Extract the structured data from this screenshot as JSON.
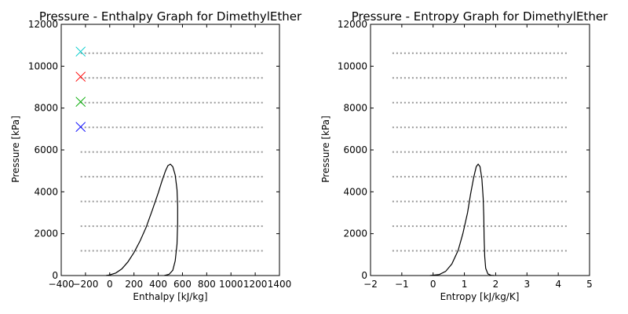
{
  "chart_data": [
    {
      "type": "line",
      "title": "Pressure - Enthalpy Graph for DimethylEther",
      "xlabel": "Enthalpy [kJ/kg]",
      "ylabel": "Pressure [kPa]",
      "xlim": [
        -400,
        1400
      ],
      "ylim": [
        0,
        12000
      ],
      "xticks": [
        -400,
        -200,
        0,
        200,
        400,
        600,
        800,
        1000,
        1200,
        1400
      ],
      "yticks": [
        0,
        2000,
        4000,
        6000,
        8000,
        10000,
        12000
      ],
      "dome": [
        [
          -30,
          0
        ],
        [
          0,
          30
        ],
        [
          50,
          120
        ],
        [
          100,
          320
        ],
        [
          150,
          650
        ],
        [
          200,
          1100
        ],
        [
          250,
          1650
        ],
        [
          300,
          2300
        ],
        [
          350,
          3100
        ],
        [
          400,
          3950
        ],
        [
          430,
          4500
        ],
        [
          460,
          5000
        ],
        [
          480,
          5250
        ],
        [
          500,
          5320
        ],
        [
          520,
          5200
        ],
        [
          540,
          4800
        ],
        [
          555,
          4100
        ],
        [
          560,
          3300
        ],
        [
          560,
          2500
        ],
        [
          555,
          1500
        ],
        [
          540,
          700
        ],
        [
          520,
          250
        ],
        [
          490,
          60
        ],
        [
          450,
          0
        ]
      ],
      "isobars": {
        "x_range": [
          -240,
          1270
        ],
        "pressures": [
          1180,
          2360,
          3540,
          4720,
          5900,
          7080,
          8260,
          9440,
          10620
        ]
      },
      "markers": [
        {
          "x": -240,
          "y": 10700,
          "color": "#00cccc"
        },
        {
          "x": -240,
          "y": 9500,
          "color": "#ff0000"
        },
        {
          "x": -240,
          "y": 8300,
          "color": "#00aa00"
        },
        {
          "x": -240,
          "y": 7100,
          "color": "#0000ff"
        }
      ]
    },
    {
      "type": "line",
      "title": "Pressure - Entropy Graph for DimethylEther",
      "xlabel": "Entropy [kJ/kg/K]",
      "ylabel": "Pressure [kPa]",
      "xlim": [
        -2,
        5
      ],
      "ylim": [
        0,
        12000
      ],
      "xticks": [
        -2,
        -1,
        0,
        1,
        2,
        3,
        4,
        5
      ],
      "yticks": [
        0,
        2000,
        4000,
        6000,
        8000,
        10000,
        12000
      ],
      "dome": [
        [
          -0.1,
          0
        ],
        [
          0.2,
          50
        ],
        [
          0.4,
          200
        ],
        [
          0.6,
          550
        ],
        [
          0.8,
          1200
        ],
        [
          0.95,
          2000
        ],
        [
          1.1,
          3000
        ],
        [
          1.2,
          3900
        ],
        [
          1.3,
          4700
        ],
        [
          1.38,
          5200
        ],
        [
          1.44,
          5320
        ],
        [
          1.5,
          5200
        ],
        [
          1.56,
          4600
        ],
        [
          1.6,
          3700
        ],
        [
          1.62,
          2800
        ],
        [
          1.63,
          1800
        ],
        [
          1.65,
          900
        ],
        [
          1.68,
          350
        ],
        [
          1.75,
          80
        ],
        [
          1.85,
          10
        ],
        [
          1.95,
          0
        ]
      ],
      "isobars": {
        "x_range": [
          -1.3,
          4.3
        ],
        "pressures": [
          1180,
          2360,
          3540,
          4720,
          5900,
          7080,
          8260,
          9440,
          10620
        ]
      }
    }
  ]
}
